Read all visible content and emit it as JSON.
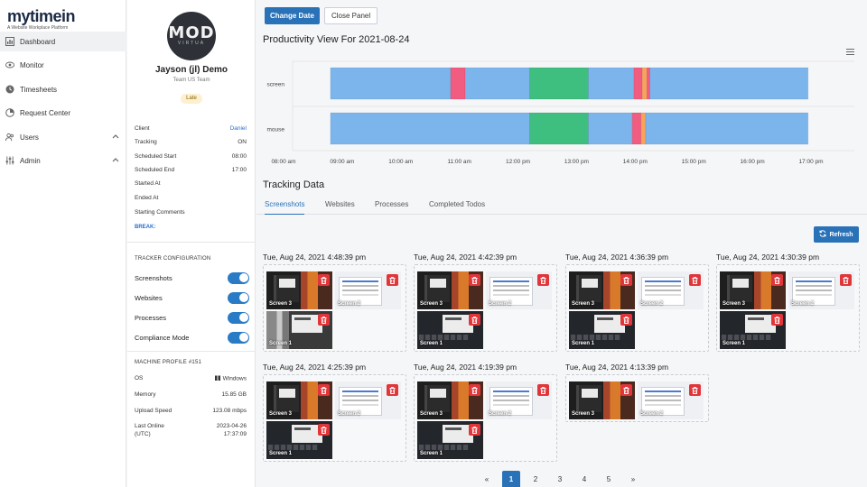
{
  "brand": {
    "name_a": "my",
    "name_b": "time",
    "name_c": "in",
    "tagline": "A Website Workplace Platform"
  },
  "nav": {
    "items": [
      {
        "label": "Dashboard",
        "icon": "dashboard-icon"
      },
      {
        "label": "Monitor",
        "icon": "eye-icon"
      },
      {
        "label": "Timesheets",
        "icon": "clock-icon"
      },
      {
        "label": "Request Center",
        "icon": "pie-icon"
      },
      {
        "label": "Users",
        "icon": "users-icon"
      },
      {
        "label": "Admin",
        "icon": "sliders-icon"
      }
    ]
  },
  "profile": {
    "avatar_text": "MOD",
    "avatar_sub": "VIRTUA",
    "name": "Jayson (jl) Demo",
    "team": "Team US Team",
    "status": "Late",
    "fields": [
      {
        "label": "Client",
        "value": "Daniel"
      },
      {
        "label": "Tracking",
        "value": "ON"
      },
      {
        "label": "Scheduled Start",
        "value": "08:00"
      },
      {
        "label": "Scheduled End",
        "value": "17:00"
      },
      {
        "label": "Started At",
        "value": ""
      },
      {
        "label": "Ended At",
        "value": ""
      },
      {
        "label": "Starting Comments",
        "value": ""
      }
    ],
    "break_label": "BREAK:",
    "tracker_title": "TRACKER CONFIGURATION",
    "toggles": [
      {
        "label": "Screenshots",
        "on": true
      },
      {
        "label": "Websites",
        "on": true
      },
      {
        "label": "Processes",
        "on": true
      },
      {
        "label": "Compliance Mode",
        "on": true
      }
    ],
    "machine_title": "MACHINE PROFILE #151",
    "machine": [
      {
        "label": "OS",
        "value": "Windows"
      },
      {
        "label": "Memory",
        "value": "15.85 GB"
      },
      {
        "label": "Upload Speed",
        "value": "123.08 mbps"
      },
      {
        "label": "Last Online",
        "value": "2023-04-26"
      },
      {
        "label": "(UTC)",
        "value": "17:37:09"
      }
    ]
  },
  "toolbar": {
    "change_date": "Change Date",
    "close_panel": "Close Panel"
  },
  "chart_title": "Productivity View For 2021-08-24",
  "chart_data": {
    "type": "bar",
    "title": "Productivity View For 2021-08-24",
    "categories": [
      "screen",
      "mouse"
    ],
    "x_ticks": [
      "08:00 am",
      "09:00 am",
      "10:00 am",
      "11:00 am",
      "12:00 pm",
      "13:00 pm",
      "14:00 pm",
      "15:00 pm",
      "16:00 pm",
      "17:00 pm"
    ],
    "x_range_hours": [
      8,
      17
    ],
    "colors": {
      "neutral": "#7cb5ec",
      "unproductive": "#f15c80",
      "productive": "#3fbf7f",
      "other": "#f7a35c"
    },
    "segments": {
      "screen": [
        {
          "start": 8.8,
          "end": 10.85,
          "kind": "neutral"
        },
        {
          "start": 10.85,
          "end": 11.1,
          "kind": "unproductive"
        },
        {
          "start": 11.1,
          "end": 12.2,
          "kind": "neutral"
        },
        {
          "start": 12.2,
          "end": 13.2,
          "kind": "productive"
        },
        {
          "start": 13.2,
          "end": 13.98,
          "kind": "neutral"
        },
        {
          "start": 13.98,
          "end": 14.12,
          "kind": "unproductive"
        },
        {
          "start": 14.12,
          "end": 14.2,
          "kind": "other"
        },
        {
          "start": 14.2,
          "end": 14.25,
          "kind": "unproductive"
        },
        {
          "start": 14.25,
          "end": 16.95,
          "kind": "neutral"
        }
      ],
      "mouse": [
        {
          "start": 8.8,
          "end": 12.2,
          "kind": "neutral"
        },
        {
          "start": 12.2,
          "end": 13.2,
          "kind": "productive"
        },
        {
          "start": 13.2,
          "end": 13.95,
          "kind": "neutral"
        },
        {
          "start": 13.95,
          "end": 14.1,
          "kind": "unproductive"
        },
        {
          "start": 14.1,
          "end": 14.18,
          "kind": "other"
        },
        {
          "start": 14.18,
          "end": 16.95,
          "kind": "neutral"
        }
      ]
    }
  },
  "tracking": {
    "title": "Tracking Data",
    "tabs": [
      "Screenshots",
      "Websites",
      "Processes",
      "Completed Todos"
    ],
    "refresh": "Refresh",
    "cards": [
      {
        "timestamp": "Tue, Aug 24, 2021 4:48:39 pm",
        "shots": [
          "Screen 3",
          "Screen 2",
          "Screen 1"
        ]
      },
      {
        "timestamp": "Tue, Aug 24, 2021 4:42:39 pm",
        "shots": [
          "Screen 3",
          "Screen 2",
          "Screen 1"
        ]
      },
      {
        "timestamp": "Tue, Aug 24, 2021 4:36:39 pm",
        "shots": [
          "Screen 3",
          "Screen 2",
          "Screen 1"
        ]
      },
      {
        "timestamp": "Tue, Aug 24, 2021 4:30:39 pm",
        "shots": [
          "Screen 3",
          "Screen 2",
          "Screen 1"
        ]
      },
      {
        "timestamp": "Tue, Aug 24, 2021 4:25:39 pm",
        "shots": [
          "Screen 3",
          "Screen 2",
          "Screen 1"
        ]
      },
      {
        "timestamp": "Tue, Aug 24, 2021 4:19:39 pm",
        "shots": [
          "Screen 3",
          "Screen 2",
          "Screen 1"
        ]
      },
      {
        "timestamp": "Tue, Aug 24, 2021 4:13:39 pm",
        "shots": [
          "Screen 3",
          "Screen 2"
        ]
      }
    ],
    "pager": [
      "«",
      "1",
      "2",
      "3",
      "4",
      "5",
      "»"
    ],
    "active_page": "1"
  }
}
